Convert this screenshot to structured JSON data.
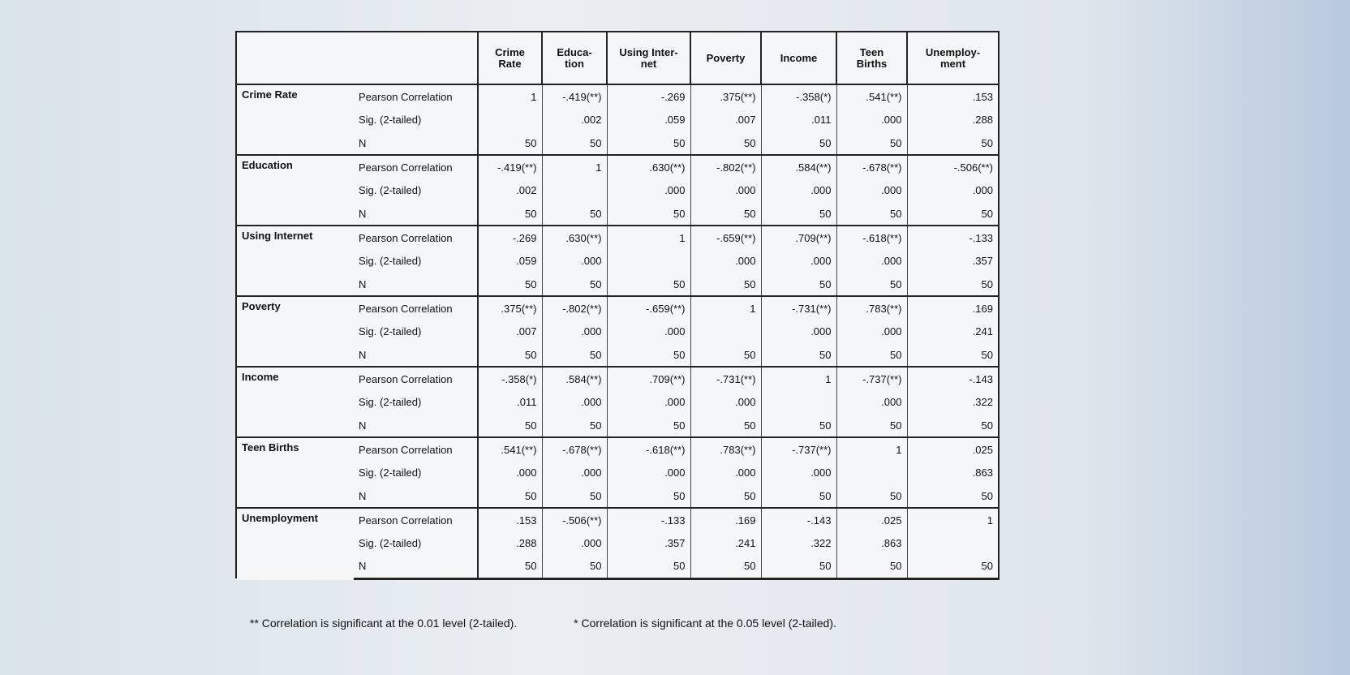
{
  "table": {
    "columns": [
      "Crime\nRate",
      "Educa-\ntion",
      "Using Inter-\nnet",
      "Poverty",
      "Income",
      "Teen\nBirths",
      "Unemploy-\nment"
    ],
    "rows": [
      {
        "label": "Crime Rate",
        "stats": [
          {
            "label": "Pearson Correlation",
            "cells": [
              "1",
              "-.419(**)",
              "-.269",
              ".375(**)",
              "-.358(*)",
              ".541(**)",
              ".153"
            ]
          },
          {
            "label": "Sig. (2-tailed)",
            "cells": [
              null,
              ".002",
              ".059",
              ".007",
              ".011",
              ".000",
              ".288"
            ]
          },
          {
            "label": "N",
            "cells": [
              "50",
              "50",
              "50",
              "50",
              "50",
              "50",
              "50"
            ]
          }
        ]
      },
      {
        "label": "Education",
        "stats": [
          {
            "label": "Pearson Correlation",
            "cells": [
              "-.419(**)",
              "1",
              ".630(**)",
              "-.802(**)",
              ".584(**)",
              "-.678(**)",
              "-.506(**)"
            ]
          },
          {
            "label": "Sig. (2-tailed)",
            "cells": [
              ".002",
              null,
              ".000",
              ".000",
              ".000",
              ".000",
              ".000"
            ]
          },
          {
            "label": "N",
            "cells": [
              "50",
              "50",
              "50",
              "50",
              "50",
              "50",
              "50"
            ]
          }
        ]
      },
      {
        "label": "Using Internet",
        "stats": [
          {
            "label": "Pearson Correlation",
            "cells": [
              "-.269",
              ".630(**)",
              "1",
              "-.659(**)",
              ".709(**)",
              "-.618(**)",
              "-.133"
            ]
          },
          {
            "label": "Sig. (2-tailed)",
            "cells": [
              ".059",
              ".000",
              null,
              ".000",
              ".000",
              ".000",
              ".357"
            ]
          },
          {
            "label": "N",
            "cells": [
              "50",
              "50",
              "50",
              "50",
              "50",
              "50",
              "50"
            ]
          }
        ]
      },
      {
        "label": "Poverty",
        "stats": [
          {
            "label": "Pearson Correlation",
            "cells": [
              ".375(**)",
              "-.802(**)",
              "-.659(**)",
              "1",
              "-.731(**)",
              ".783(**)",
              ".169"
            ]
          },
          {
            "label": "Sig. (2-tailed)",
            "cells": [
              ".007",
              ".000",
              ".000",
              null,
              ".000",
              ".000",
              ".241"
            ]
          },
          {
            "label": "N",
            "cells": [
              "50",
              "50",
              "50",
              "50",
              "50",
              "50",
              "50"
            ]
          }
        ]
      },
      {
        "label": "Income",
        "stats": [
          {
            "label": "Pearson Correlation",
            "cells": [
              "-.358(*)",
              ".584(**)",
              ".709(**)",
              "-.731(**)",
              "1",
              "-.737(**)",
              "-.143"
            ]
          },
          {
            "label": "Sig. (2-tailed)",
            "cells": [
              ".011",
              ".000",
              ".000",
              ".000",
              null,
              ".000",
              ".322"
            ]
          },
          {
            "label": "N",
            "cells": [
              "50",
              "50",
              "50",
              "50",
              "50",
              "50",
              "50"
            ]
          }
        ]
      },
      {
        "label": "Teen Births",
        "stats": [
          {
            "label": "Pearson Correlation",
            "cells": [
              ".541(**)",
              "-.678(**)",
              "-.618(**)",
              ".783(**)",
              "-.737(**)",
              "1",
              ".025"
            ]
          },
          {
            "label": "Sig. (2-tailed)",
            "cells": [
              ".000",
              ".000",
              ".000",
              ".000",
              ".000",
              null,
              ".863"
            ]
          },
          {
            "label": "N",
            "cells": [
              "50",
              "50",
              "50",
              "50",
              "50",
              "50",
              "50"
            ]
          }
        ]
      },
      {
        "label": "Unemployment",
        "stats": [
          {
            "label": "Pearson Correlation",
            "cells": [
              ".153",
              "-.506(**)",
              "-.133",
              ".169",
              "-.143",
              ".025",
              "1"
            ]
          },
          {
            "label": "Sig. (2-tailed)",
            "cells": [
              ".288",
              ".000",
              ".357",
              ".241",
              ".322",
              ".863",
              null
            ]
          },
          {
            "label": "N",
            "cells": [
              "50",
              "50",
              "50",
              "50",
              "50",
              "50",
              "50"
            ]
          }
        ]
      }
    ]
  },
  "footnotes": [
    "** Correlation is significant at the 0.01 level (2-tailed).",
    "* Correlation is significant at the 0.05 level (2-tailed)."
  ]
}
